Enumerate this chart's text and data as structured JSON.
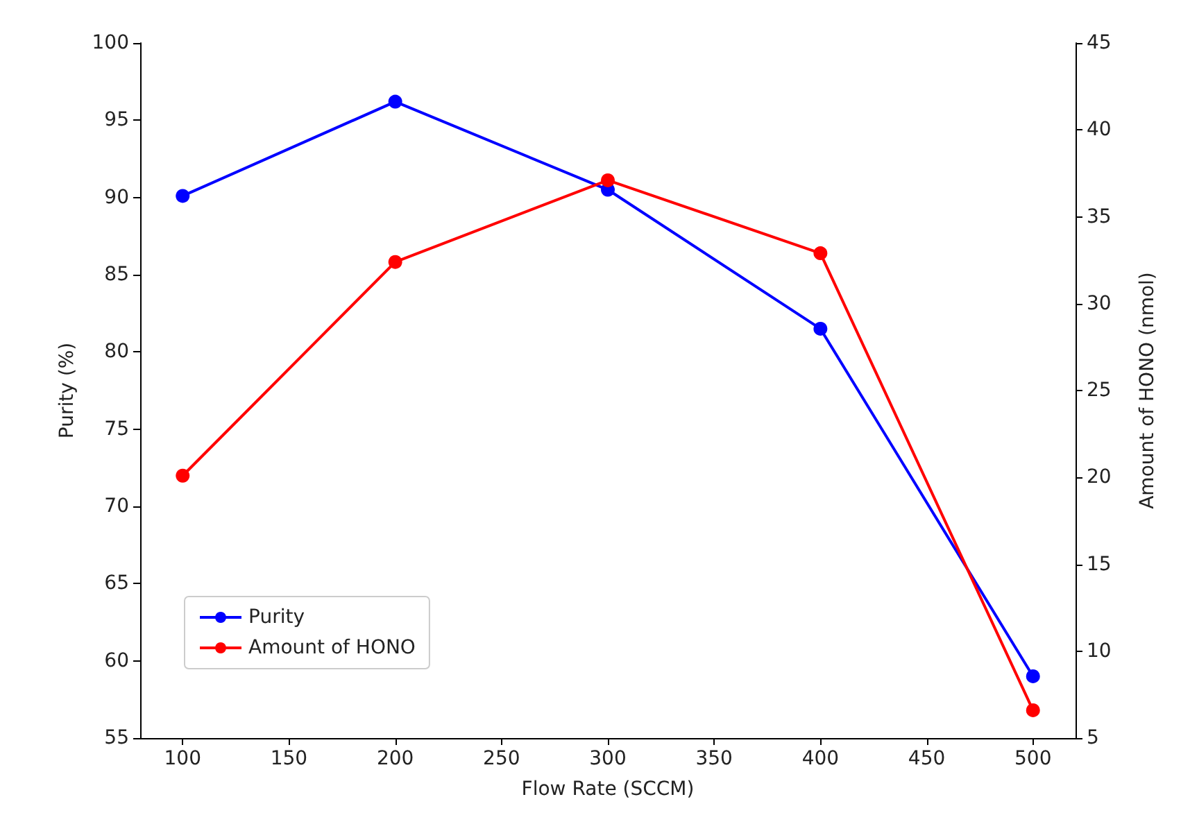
{
  "chart_data": {
    "type": "line",
    "xlabel": "Flow Rate (SCCM)",
    "ylabel": "Purity (%)",
    "y2label": "Amount of HONO (nmol)",
    "x": [
      100,
      200,
      300,
      400,
      500
    ],
    "series": [
      {
        "name": "Purity",
        "color": "#0000ff",
        "values": [
          90.1,
          96.2,
          90.5,
          81.5,
          59.0
        ]
      },
      {
        "name": "Amount of HONO",
        "color": "#ff0000",
        "values": [
          20.1,
          32.4,
          37.1,
          32.9,
          6.6
        ],
        "axis": "y2"
      }
    ],
    "xlim": [
      80,
      520
    ],
    "xticks": [
      100,
      150,
      200,
      250,
      300,
      350,
      400,
      450,
      500
    ],
    "ylim": [
      55,
      100
    ],
    "yticks": [
      55,
      60,
      65,
      70,
      75,
      80,
      85,
      90,
      95,
      100
    ],
    "y2lim": [
      5,
      45
    ],
    "y2ticks": [
      5,
      10,
      15,
      20,
      25,
      30,
      35,
      40,
      45
    ],
    "legend": "bottom left",
    "marker": "circle",
    "line_style": "solid",
    "grid": false
  }
}
